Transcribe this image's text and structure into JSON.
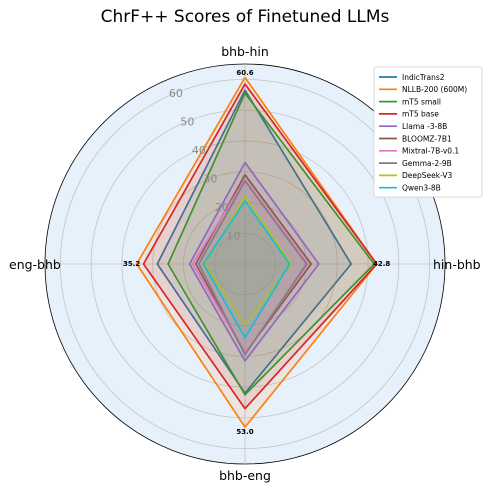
{
  "chart_data": {
    "type": "radar",
    "title": "ChrF++ Scores of Finetuned LLMs",
    "axes": [
      "bhb-hin",
      "hin-bhb",
      "bhb-eng",
      "eng-bhb"
    ],
    "radial_ticks": [
      "10",
      "20",
      "30",
      "40",
      "50",
      "60"
    ],
    "rlim": [
      0,
      65
    ],
    "grid": true,
    "legend_position": "top-right",
    "max_labels": [
      "60.6",
      "42.8",
      "53.0",
      "35.2"
    ],
    "series": [
      {
        "name": "IndicTrans2",
        "color": "#1f77b4",
        "values": [
          56.5,
          34.5,
          42.0,
          28.5
        ]
      },
      {
        "name": "NLLB-200 (600M)",
        "color": "#ff7f0e",
        "values": [
          60.6,
          42.8,
          53.0,
          35.2
        ]
      },
      {
        "name": "mT5 small",
        "color": "#2ca02c",
        "values": [
          55.5,
          42.0,
          42.5,
          25.0
        ]
      },
      {
        "name": "mT5 base",
        "color": "#d62728",
        "values": [
          58.5,
          42.8,
          47.0,
          33.0
        ]
      },
      {
        "name": "Llama -3-8B",
        "color": "#9467bd",
        "values": [
          33.0,
          24.0,
          31.5,
          18.0
        ]
      },
      {
        "name": "BLOOMZ-7B1",
        "color": "#8c564b",
        "values": [
          29.0,
          21.5,
          29.0,
          16.0
        ]
      },
      {
        "name": "Mixtral-7B-v0.1",
        "color": "#e377c2",
        "values": [
          27.5,
          20.5,
          29.0,
          17.0
        ]
      },
      {
        "name": "Gemma-2-9B",
        "color": "#7f7f7f",
        "values": [
          27.0,
          20.0,
          29.5,
          15.0
        ]
      },
      {
        "name": "DeepSeek-V3",
        "color": "#bcbd22",
        "values": [
          22.0,
          15.0,
          20.0,
          13.0
        ]
      },
      {
        "name": "Qwen3-8B",
        "color": "#17becf",
        "values": [
          20.5,
          14.5,
          24.0,
          13.5
        ]
      }
    ]
  }
}
